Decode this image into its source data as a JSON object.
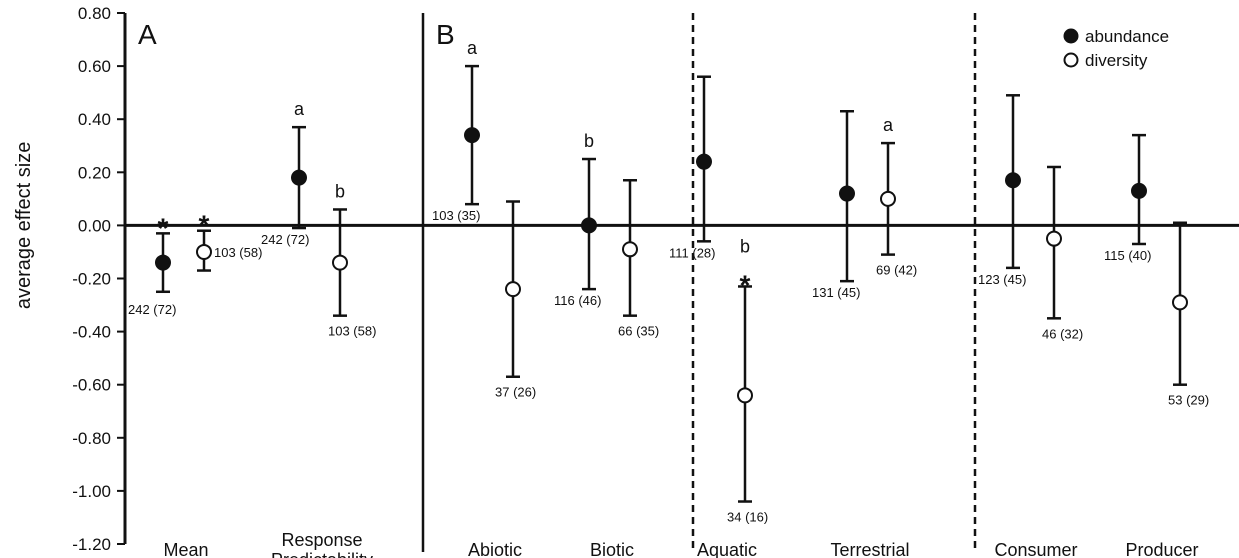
{
  "chart_data": {
    "type": "scatter",
    "ylabel": "average effect size",
    "ylim": [
      -1.2,
      0.8
    ],
    "yticks": [
      "0.80",
      "0.60",
      "0.40",
      "0.20",
      "0.00",
      "-0.20",
      "-0.40",
      "-0.60",
      "-0.80",
      "-1.00",
      "-1.20"
    ],
    "panels": [
      "A",
      "B"
    ],
    "legend": {
      "position": "top-right",
      "entries": [
        {
          "name": "abundance",
          "marker": "filled-circle"
        },
        {
          "name": "diversity",
          "marker": "open-circle"
        }
      ]
    },
    "categories": [
      {
        "label": "Mean",
        "label2": ""
      },
      {
        "label": "Response",
        "label2": "Predictability"
      },
      {
        "label": "Abiotic",
        "label2": ""
      },
      {
        "label": "Biotic",
        "label2": ""
      },
      {
        "label": "Aquatic",
        "label2": ""
      },
      {
        "label": "Terrestrial",
        "label2": ""
      },
      {
        "label": "Consumer",
        "label2": ""
      },
      {
        "label": "Producer",
        "label2": ""
      }
    ],
    "series": [
      {
        "name": "abundance",
        "points": [
          {
            "category": "Mean",
            "y": -0.14,
            "lo": -0.25,
            "hi": -0.03,
            "n": "242 (72)",
            "letter": "",
            "star": "*"
          },
          {
            "category": "Response Predictability",
            "y": 0.18,
            "lo": -0.01,
            "hi": 0.37,
            "n": "242 (72)",
            "letter": "a",
            "star": ""
          },
          {
            "category": "Abiotic",
            "y": 0.34,
            "lo": 0.08,
            "hi": 0.6,
            "n": "103 (35)",
            "letter": "a",
            "star": ""
          },
          {
            "category": "Biotic",
            "y": 0.0,
            "lo": -0.24,
            "hi": 0.25,
            "n": "116 (46)",
            "letter": "b",
            "star": ""
          },
          {
            "category": "Aquatic",
            "y": 0.24,
            "lo": -0.06,
            "hi": 0.56,
            "n": "111 (28)",
            "letter": "",
            "star": ""
          },
          {
            "category": "Terrestrial",
            "y": 0.12,
            "lo": -0.21,
            "hi": 0.43,
            "n": "131 (45)",
            "letter": "",
            "star": ""
          },
          {
            "category": "Consumer",
            "y": 0.17,
            "lo": -0.16,
            "hi": 0.49,
            "n": "123 (45)",
            "letter": "",
            "star": ""
          },
          {
            "category": "Producer",
            "y": 0.13,
            "lo": -0.07,
            "hi": 0.34,
            "n": "115 (40)",
            "letter": "",
            "star": ""
          }
        ]
      },
      {
        "name": "diversity",
        "points": [
          {
            "category": "Mean",
            "y": -0.1,
            "lo": -0.17,
            "hi": -0.02,
            "n": "103 (58)",
            "letter": "",
            "star": "*"
          },
          {
            "category": "Response Predictability",
            "y": -0.14,
            "lo": -0.34,
            "hi": 0.06,
            "n": "103 (58)",
            "letter": "b",
            "star": ""
          },
          {
            "category": "Abiotic",
            "y": -0.24,
            "lo": -0.57,
            "hi": 0.09,
            "n": "37 (26)",
            "letter": "",
            "star": ""
          },
          {
            "category": "Biotic",
            "y": -0.09,
            "lo": -0.34,
            "hi": 0.17,
            "n": "66 (35)",
            "letter": "",
            "star": ""
          },
          {
            "category": "Aquatic",
            "y": -0.64,
            "lo": -1.04,
            "hi": -0.23,
            "n": "34 (16)",
            "letter": "b",
            "star": "*"
          },
          {
            "category": "Terrestrial",
            "y": 0.1,
            "lo": -0.11,
            "hi": 0.31,
            "n": "69 (42)",
            "letter": "a",
            "star": ""
          },
          {
            "category": "Consumer",
            "y": -0.05,
            "lo": -0.35,
            "hi": 0.22,
            "n": "46 (32)",
            "letter": "",
            "star": ""
          },
          {
            "category": "Producer",
            "y": -0.29,
            "lo": -0.6,
            "hi": 0.01,
            "n": "53 (29)",
            "letter": "",
            "star": ""
          }
        ]
      }
    ]
  }
}
